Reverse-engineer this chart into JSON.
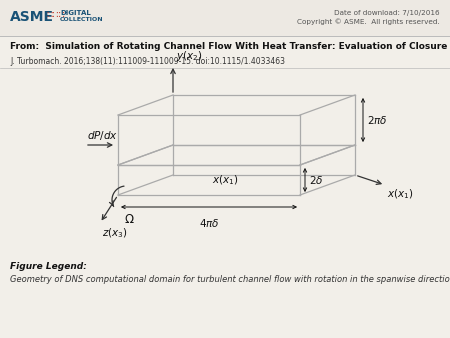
{
  "bg_color": "#ede9e3",
  "header_bg": "#ede9e3",
  "content_bg": "#f2efe9",
  "title_text": "From:  Simulation of Rotating Channel Flow With Heat Transfer: Evaluation of Closure Models",
  "subtitle_text": "J. Turbomach. 2016;138(11):111009-111009-15. doi:10.1115/1.4033463",
  "date_text": "Date of download: 7/10/2016",
  "copyright_text": "Copyright © ASME.  All rights reserved.",
  "figure_legend_title": "Figure Legend:",
  "figure_legend_text": "Geometry of DNS computational domain for turbulent channel flow with rotation in the spanwise direction",
  "box_color": "#aaaaaa",
  "arrow_color": "#333333",
  "label_color": "#111111",
  "asme_blue": "#1a5276",
  "separator_color": "#bbbbbb"
}
